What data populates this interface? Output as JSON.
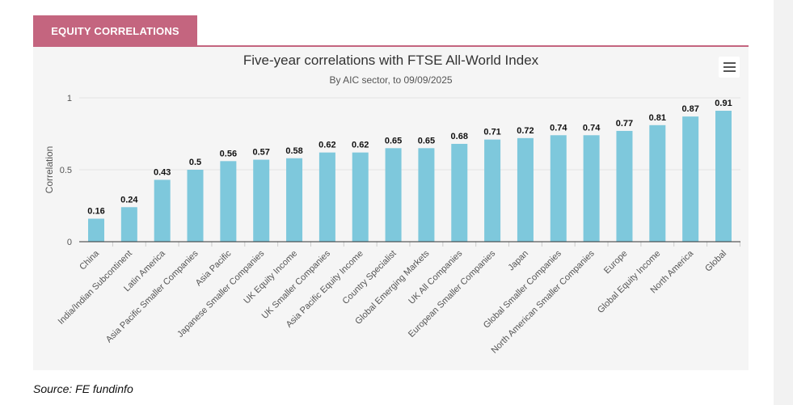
{
  "header": {
    "tab_label": "EQUITY CORRELATIONS"
  },
  "footer": {
    "source": "Source: FE fundinfo"
  },
  "colors": {
    "bar": "#7ec8dc",
    "tab": "#c4657f"
  },
  "chart_data": {
    "type": "bar",
    "title": "Five-year correlations with FTSE All-World Index",
    "subtitle": "By AIC sector, to 09/09/2025",
    "xlabel": "",
    "ylabel": "Correlation",
    "ylim": [
      0,
      1
    ],
    "yticks": [
      "0",
      "0.5",
      "1"
    ],
    "grid": true,
    "categories": [
      "China",
      "India/Indian Subcontinent",
      "Latin America",
      "Asia Pacific Smaller Companies",
      "Asia Pacific",
      "Japanese Smaller Companies",
      "UK Equity Income",
      "UK Smaller Companies",
      "Asia Pacific Equity Income",
      "Country Specialist",
      "Global Emerging Markets",
      "UK All Companies",
      "European Smaller Companies",
      "Japan",
      "Global Smaller Companies",
      "North American Smaller Companies",
      "Europe",
      "Global Equity Income",
      "North America",
      "Global"
    ],
    "values": [
      0.16,
      0.24,
      0.43,
      0.5,
      0.56,
      0.57,
      0.58,
      0.62,
      0.62,
      0.65,
      0.65,
      0.68,
      0.71,
      0.72,
      0.74,
      0.74,
      0.77,
      0.81,
      0.87,
      0.91
    ],
    "labels": [
      "0.16",
      "0.24",
      "0.43",
      "0.5",
      "0.56",
      "0.57",
      "0.58",
      "0.62",
      "0.62",
      "0.65",
      "0.65",
      "0.68",
      "0.71",
      "0.72",
      "0.74",
      "0.74",
      "0.77",
      "0.81",
      "0.87",
      "0.91"
    ]
  }
}
